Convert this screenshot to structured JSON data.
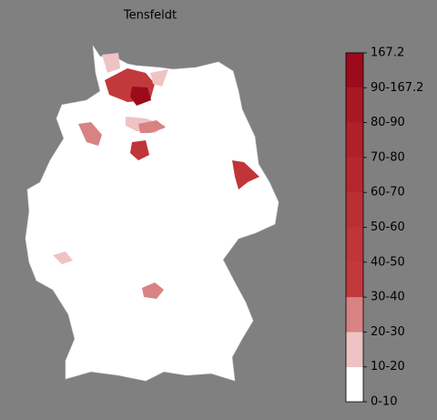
{
  "title": "Tensfeldt",
  "colorbar": {
    "labels": [
      "0-10",
      "10-20",
      "20-30",
      "30-40",
      "40-50",
      "50-60",
      "60-70",
      "70-80",
      "80-90",
      "90-167.2",
      "167.2"
    ],
    "colors": [
      "#ffffff",
      "#efc3c3",
      "#d98283",
      "#c2393b",
      "#bf3538",
      "#bb2f33",
      "#b6272d",
      "#b02028",
      "#a81822",
      "#9c0a1c"
    ]
  }
}
